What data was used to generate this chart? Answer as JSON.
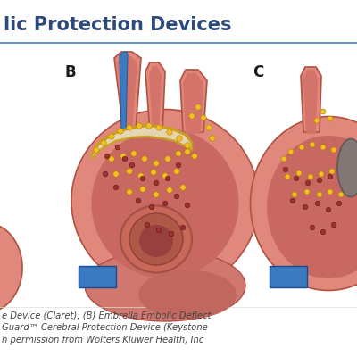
{
  "title_text": "lic Protection Devices",
  "title_color": "#2d4a7a",
  "title_fontsize": 15,
  "title_fontweight": "bold",
  "rule_color": "#4a7abf",
  "label_B": "B",
  "label_C": "C",
  "label_color": "#1a1a1a",
  "label_fontsize": 12,
  "caption_lines": [
    "e Device (Claret); (B) Embrella Embolic Deflect",
    "Guard™ Cerebral Protection Device (Keystone",
    "h permission from Wolters Kluwer Health, Inc"
  ],
  "caption_color": "#444444",
  "caption_fontsize": 7.2,
  "bg_color": "#ffffff",
  "heart_fill": "#d4736a",
  "heart_fill2": "#c86860",
  "heart_inner": "#c86055",
  "heart_outline": "#b05040",
  "heart_shadow": "#be6858",
  "blue_color": "#3a7abf",
  "filter_fill": "#e8ddb8",
  "filter_outline": "#c8a020",
  "dot_yellow": "#f0c020",
  "dot_red": "#993333",
  "gray_device": "#7a7a7a"
}
